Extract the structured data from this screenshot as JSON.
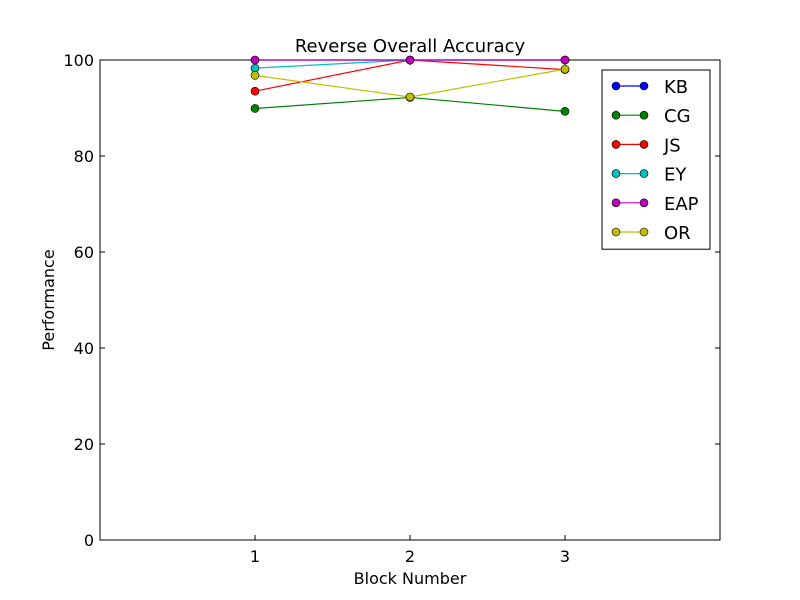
{
  "chart_data": {
    "type": "line",
    "title": "Reverse Overall Accuracy",
    "xlabel": "Block Number",
    "ylabel": "Performance",
    "xlim": [
      0,
      4
    ],
    "ylim": [
      0,
      100
    ],
    "xticks": [
      1,
      2,
      3
    ],
    "yticks": [
      0,
      20,
      40,
      60,
      80,
      100
    ],
    "grid": false,
    "legend_position": "top-right",
    "x": [
      1,
      2,
      3
    ],
    "series": [
      {
        "name": "KB",
        "color": "#0000ff",
        "values": [
          100,
          100,
          100
        ]
      },
      {
        "name": "CG",
        "color": "#008000",
        "values": [
          89.9,
          92.2,
          89.3
        ]
      },
      {
        "name": "JS",
        "color": "#ff0000",
        "values": [
          93.5,
          100,
          98.0
        ]
      },
      {
        "name": "EY",
        "color": "#00bfbf",
        "values": [
          98.3,
          100,
          100
        ]
      },
      {
        "name": "EAP",
        "color": "#bf00bf",
        "values": [
          100,
          100,
          100
        ]
      },
      {
        "name": "OR",
        "color": "#bfbf00",
        "values": [
          96.8,
          92.3,
          98.1
        ]
      }
    ]
  }
}
